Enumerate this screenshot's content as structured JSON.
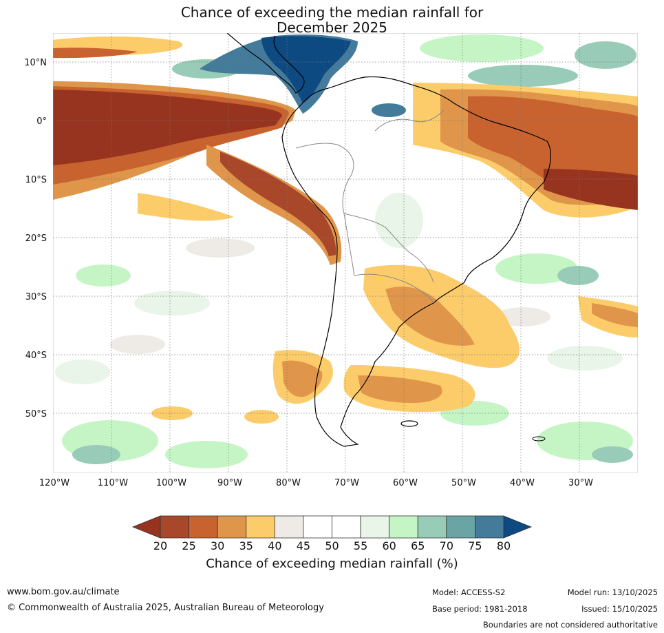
{
  "title": {
    "line1": "Chance of exceeding the median rainfall for",
    "line2": "December 2025"
  },
  "map": {
    "lat_labels": [
      "10°N",
      "0°",
      "10°S",
      "20°S",
      "30°S",
      "40°S",
      "50°S"
    ],
    "lat_values": [
      10,
      0,
      -10,
      -20,
      -30,
      -40,
      -50
    ],
    "lon_labels": [
      "120°W",
      "110°W",
      "100°W",
      "90°W",
      "80°W",
      "70°W",
      "60°W",
      "50°W",
      "40°W",
      "30°W"
    ],
    "lon_values": [
      -120,
      -110,
      -100,
      -90,
      -80,
      -70,
      -60,
      -50,
      -40,
      -30
    ],
    "lat_range": [
      -60,
      15
    ],
    "lon_range": [
      -120,
      -20
    ]
  },
  "colorbar": {
    "title": "Chance of exceeding median rainfall (%)",
    "ticks": [
      "20",
      "25",
      "30",
      "35",
      "40",
      "45",
      "50",
      "55",
      "60",
      "65",
      "70",
      "75",
      "80"
    ],
    "low_extend_color": "#97341f",
    "high_extend_color": "#0e4a82",
    "colors": [
      "#a8472a",
      "#c8632f",
      "#e0964a",
      "#fdcc6a",
      "#eeebe6",
      "#ffffff",
      "#ffffff",
      "#e8f5e8",
      "#c5f5c5",
      "#98ccb8",
      "#6aa4a4",
      "#447b9a"
    ]
  },
  "footer": {
    "website": "www.bom.gov.au/climate",
    "copyright": "© Commonwealth of Australia 2025, Australian Bureau of Meteorology",
    "model": "Model: ACCESS-S2",
    "base_period": "Base period: 1981-2018",
    "model_run": "Model run: 13/10/2025",
    "issued": "Issued: 15/10/2025",
    "disclaimer": "Boundaries are not considered authoritative"
  }
}
